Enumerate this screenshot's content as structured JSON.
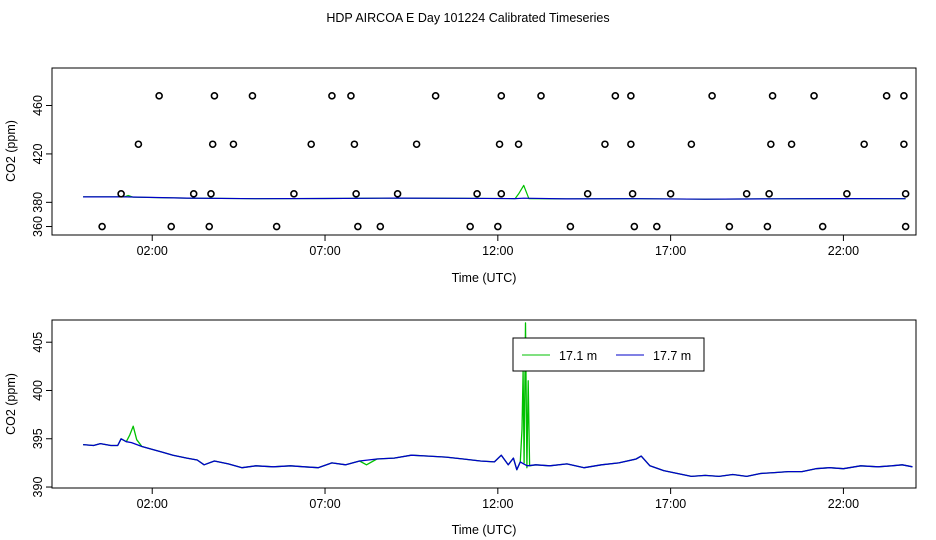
{
  "title": "HDP AIRCOA E  Day 101224  Calibrated Timeseries",
  "colors": {
    "green": "#00c000",
    "blue": "#0000c8",
    "points": "#000000"
  },
  "chart_data": [
    {
      "type": "scatter",
      "xlabel": "Time (UTC)",
      "ylabel": "CO2 (ppm)",
      "xlim": [
        -0.9,
        24.1
      ],
      "ylim": [
        353,
        491
      ],
      "x_ticks": [
        2,
        7,
        12,
        17,
        22
      ],
      "x_tick_labels": [
        "02:00",
        "07:00",
        "12:00",
        "17:00",
        "22:00"
      ],
      "y_ticks": [
        360,
        380,
        420,
        460
      ],
      "y_tick_labels": [
        "360",
        "380",
        "420",
        "460"
      ],
      "grid": false,
      "series": [
        {
          "points": [
            [
              0.55,
              360
            ],
            [
              2.55,
              360
            ],
            [
              3.65,
              360
            ],
            [
              5.6,
              360
            ],
            [
              7.95,
              360
            ],
            [
              8.6,
              360
            ],
            [
              11.2,
              360
            ],
            [
              12.0,
              360
            ],
            [
              14.1,
              360
            ],
            [
              15.95,
              360
            ],
            [
              16.6,
              360
            ],
            [
              18.7,
              360
            ],
            [
              19.8,
              360
            ],
            [
              21.4,
              360
            ],
            [
              23.8,
              360
            ],
            [
              1.1,
              387
            ],
            [
              3.2,
              387
            ],
            [
              3.7,
              387
            ],
            [
              6.1,
              387
            ],
            [
              7.9,
              387
            ],
            [
              9.1,
              387
            ],
            [
              11.4,
              387
            ],
            [
              12.1,
              387
            ],
            [
              14.6,
              387
            ],
            [
              15.9,
              387
            ],
            [
              17.0,
              387
            ],
            [
              19.2,
              387
            ],
            [
              19.85,
              387
            ],
            [
              22.1,
              387
            ],
            [
              23.8,
              387
            ],
            [
              1.6,
              428
            ],
            [
              3.75,
              428
            ],
            [
              4.35,
              428
            ],
            [
              6.6,
              428
            ],
            [
              7.85,
              428
            ],
            [
              9.65,
              428
            ],
            [
              12.05,
              428
            ],
            [
              12.6,
              428
            ],
            [
              15.1,
              428
            ],
            [
              15.85,
              428
            ],
            [
              17.6,
              428
            ],
            [
              19.9,
              428
            ],
            [
              20.5,
              428
            ],
            [
              22.6,
              428
            ],
            [
              23.75,
              428
            ],
            [
              2.2,
              468
            ],
            [
              3.8,
              468
            ],
            [
              4.9,
              468
            ],
            [
              7.2,
              468
            ],
            [
              7.75,
              468
            ],
            [
              10.2,
              468
            ],
            [
              12.1,
              468
            ],
            [
              13.25,
              468
            ],
            [
              15.4,
              468
            ],
            [
              15.85,
              468
            ],
            [
              18.2,
              468
            ],
            [
              19.95,
              468
            ],
            [
              21.15,
              468
            ],
            [
              23.25,
              468
            ],
            [
              23.75,
              468
            ]
          ]
        },
        {
          "name": "17.1 m",
          "values": [
            [
              0,
              384.5
            ],
            [
              1.2,
              384.6
            ],
            [
              1.3,
              385.6
            ],
            [
              1.45,
              384.2
            ],
            [
              3,
              383.5
            ],
            [
              5,
              383.0
            ],
            [
              7,
              383.2
            ],
            [
              9,
              383.5
            ],
            [
              11,
              383.3
            ],
            [
              12.5,
              383.1
            ],
            [
              12.6,
              387
            ],
            [
              12.75,
              394
            ],
            [
              12.9,
              383
            ],
            [
              14,
              382.8
            ],
            [
              16,
              383
            ],
            [
              18,
              382.6
            ],
            [
              20,
              382.9
            ],
            [
              22,
              383.1
            ],
            [
              23.8,
              383
            ]
          ]
        },
        {
          "name": "17.7 m",
          "values": [
            [
              0,
              384.5
            ],
            [
              1.2,
              384.6
            ],
            [
              1.4,
              384.4
            ],
            [
              3,
              383.5
            ],
            [
              5,
              383.0
            ],
            [
              7,
              383.2
            ],
            [
              9,
              383.5
            ],
            [
              11,
              383.3
            ],
            [
              12.5,
              383.1
            ],
            [
              12.75,
              383.4
            ],
            [
              14,
              382.8
            ],
            [
              16,
              383
            ],
            [
              18,
              382.6
            ],
            [
              20,
              382.9
            ],
            [
              22,
              383.1
            ],
            [
              23.8,
              383
            ]
          ]
        }
      ]
    },
    {
      "type": "line",
      "xlabel": "Time (UTC)",
      "ylabel": "CO2 (ppm)",
      "xlim": [
        -0.9,
        24.1
      ],
      "ylim": [
        389.9,
        407.3
      ],
      "x_ticks": [
        2,
        7,
        12,
        17,
        22
      ],
      "x_tick_labels": [
        "02:00",
        "07:00",
        "12:00",
        "17:00",
        "22:00"
      ],
      "y_ticks": [
        390,
        395,
        400,
        405
      ],
      "y_tick_labels": [
        "390",
        "395",
        "400",
        "405"
      ],
      "grid": false,
      "legend": "top-center",
      "series": [
        {
          "name": "17.1 m",
          "values": [
            [
              0,
              394.4
            ],
            [
              0.3,
              394.3
            ],
            [
              0.5,
              394.5
            ],
            [
              0.8,
              394.3
            ],
            [
              1.0,
              394.3
            ],
            [
              1.1,
              395.0
            ],
            [
              1.25,
              394.7
            ],
            [
              1.35,
              395.4
            ],
            [
              1.45,
              396.3
            ],
            [
              1.55,
              394.9
            ],
            [
              1.7,
              394.2
            ],
            [
              2,
              393.9
            ],
            [
              2.3,
              393.6
            ],
            [
              2.6,
              393.3
            ],
            [
              3,
              393.0
            ],
            [
              3.3,
              392.8
            ],
            [
              3.5,
              392.3
            ],
            [
              3.8,
              392.7
            ],
            [
              4.2,
              392.4
            ],
            [
              4.6,
              392.0
            ],
            [
              5,
              392.2
            ],
            [
              5.5,
              392.1
            ],
            [
              6,
              392.2
            ],
            [
              6.4,
              392.1
            ],
            [
              6.8,
              392.0
            ],
            [
              7.2,
              392.5
            ],
            [
              7.6,
              392.3
            ],
            [
              8,
              392.7
            ],
            [
              8.2,
              392.3
            ],
            [
              8.5,
              392.9
            ],
            [
              9,
              393.0
            ],
            [
              9.5,
              393.3
            ],
            [
              10,
              393.2
            ],
            [
              10.5,
              393.1
            ],
            [
              11,
              392.9
            ],
            [
              11.5,
              392.7
            ],
            [
              11.9,
              392.6
            ],
            [
              12.1,
              393.3
            ],
            [
              12.3,
              392.3
            ],
            [
              12.45,
              393.0
            ],
            [
              12.55,
              391.8
            ],
            [
              12.65,
              392.6
            ],
            [
              12.7,
              396.0
            ],
            [
              12.73,
              402.0
            ],
            [
              12.76,
              392.5
            ],
            [
              12.8,
              407.0
            ],
            [
              12.84,
              392.0
            ],
            [
              12.88,
              401.0
            ],
            [
              12.92,
              392.2
            ],
            [
              13.1,
              392.3
            ],
            [
              13.5,
              392.2
            ],
            [
              14,
              392.4
            ],
            [
              14.5,
              392.0
            ],
            [
              15,
              392.3
            ],
            [
              15.5,
              392.5
            ],
            [
              16,
              392.9
            ],
            [
              16.15,
              393.2
            ],
            [
              16.4,
              392.2
            ],
            [
              16.8,
              391.7
            ],
            [
              17.2,
              391.4
            ],
            [
              17.6,
              391.1
            ],
            [
              18,
              391.2
            ],
            [
              18.4,
              391.1
            ],
            [
              18.8,
              391.3
            ],
            [
              19.2,
              391.1
            ],
            [
              19.6,
              391.4
            ],
            [
              20,
              391.5
            ],
            [
              20.4,
              391.6
            ],
            [
              20.8,
              391.6
            ],
            [
              21.2,
              391.9
            ],
            [
              21.6,
              392.0
            ],
            [
              22,
              391.9
            ],
            [
              22.5,
              392.2
            ],
            [
              23,
              392.1
            ],
            [
              23.4,
              392.2
            ],
            [
              23.7,
              392.3
            ],
            [
              24,
              392.1
            ]
          ]
        },
        {
          "name": "17.7 m",
          "values": [
            [
              0,
              394.4
            ],
            [
              0.3,
              394.3
            ],
            [
              0.5,
              394.5
            ],
            [
              0.8,
              394.3
            ],
            [
              1.0,
              394.3
            ],
            [
              1.1,
              395.0
            ],
            [
              1.25,
              394.7
            ],
            [
              1.4,
              394.6
            ],
            [
              1.7,
              394.2
            ],
            [
              2,
              393.9
            ],
            [
              2.3,
              393.6
            ],
            [
              2.6,
              393.3
            ],
            [
              3,
              393.0
            ],
            [
              3.3,
              392.8
            ],
            [
              3.5,
              392.3
            ],
            [
              3.8,
              392.7
            ],
            [
              4.2,
              392.4
            ],
            [
              4.6,
              392.0
            ],
            [
              5,
              392.2
            ],
            [
              5.5,
              392.1
            ],
            [
              6,
              392.2
            ],
            [
              6.4,
              392.1
            ],
            [
              6.8,
              392.0
            ],
            [
              7.2,
              392.5
            ],
            [
              7.6,
              392.3
            ],
            [
              8,
              392.7
            ],
            [
              8.5,
              392.9
            ],
            [
              9,
              393.0
            ],
            [
              9.5,
              393.3
            ],
            [
              10,
              393.2
            ],
            [
              10.5,
              393.1
            ],
            [
              11,
              392.9
            ],
            [
              11.5,
              392.7
            ],
            [
              11.9,
              392.6
            ],
            [
              12.1,
              393.3
            ],
            [
              12.3,
              392.3
            ],
            [
              12.45,
              393.0
            ],
            [
              12.55,
              391.8
            ],
            [
              12.65,
              392.6
            ],
            [
              12.75,
              392.4
            ],
            [
              12.85,
              392.2
            ],
            [
              13.1,
              392.3
            ],
            [
              13.5,
              392.2
            ],
            [
              14,
              392.4
            ],
            [
              14.5,
              392.0
            ],
            [
              15,
              392.3
            ],
            [
              15.5,
              392.5
            ],
            [
              16,
              392.9
            ],
            [
              16.15,
              393.2
            ],
            [
              16.4,
              392.2
            ],
            [
              16.8,
              391.7
            ],
            [
              17.2,
              391.4
            ],
            [
              17.6,
              391.1
            ],
            [
              18,
              391.2
            ],
            [
              18.4,
              391.1
            ],
            [
              18.8,
              391.3
            ],
            [
              19.2,
              391.1
            ],
            [
              19.6,
              391.4
            ],
            [
              20,
              391.5
            ],
            [
              20.4,
              391.6
            ],
            [
              20.8,
              391.6
            ],
            [
              21.2,
              391.9
            ],
            [
              21.6,
              392.0
            ],
            [
              22,
              391.9
            ],
            [
              22.5,
              392.2
            ],
            [
              23,
              392.1
            ],
            [
              23.4,
              392.2
            ],
            [
              23.7,
              392.3
            ],
            [
              24,
              392.1
            ]
          ]
        }
      ]
    }
  ]
}
